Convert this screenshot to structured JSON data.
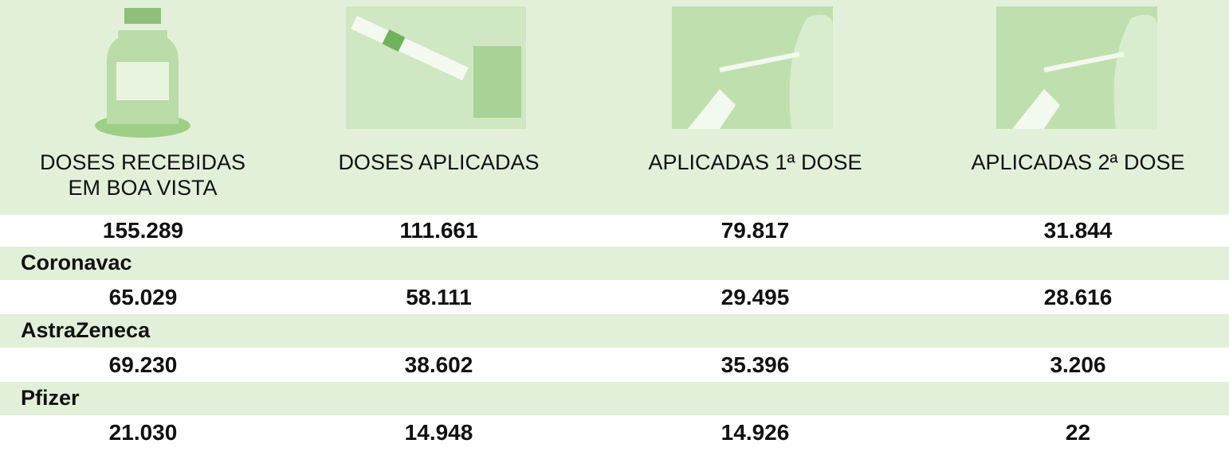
{
  "header": {
    "columns": [
      "DOSES RECEBIDAS EM BOA VISTA",
      "DOSES APLICADAS",
      "APLICADAS 1ª DOSE",
      "APLICADAS 2ª DOSE"
    ]
  },
  "total": [
    "155.289",
    "111.661",
    "79.817",
    "31.844"
  ],
  "vaccines": [
    {
      "name": "Coronavac",
      "values": [
        "65.029",
        "58.111",
        "29.495",
        "28.616"
      ]
    },
    {
      "name": "AstraZeneca",
      "values": [
        "69.230",
        "38.602",
        "35.396",
        "3.206"
      ]
    },
    {
      "name": "Pfizer",
      "values": [
        "21.030",
        "14.948",
        "14.926",
        "22"
      ]
    }
  ]
}
